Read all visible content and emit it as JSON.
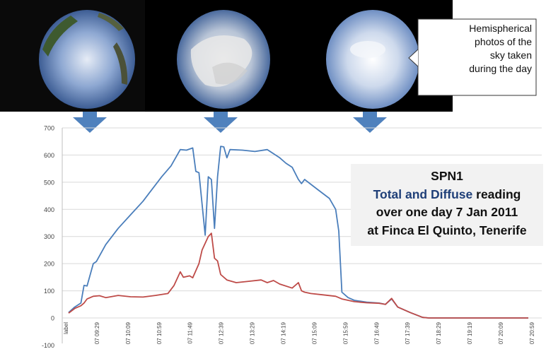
{
  "callout": {
    "lines": [
      "Hemispherical",
      "photos of the",
      "sky taken",
      "during the day"
    ]
  },
  "title_box": {
    "line1": "SPN1",
    "line2_highlight": "Total and Diffuse",
    "line2_rest": " reading",
    "line3": "over  one day 7 Jan 2011",
    "line4": "at Finca El Quinto, Tenerife"
  },
  "colors": {
    "total": "#4a7ebb",
    "diffuse": "#be4b48",
    "arrow": "#4f81bd",
    "grid": "#d9d9d9"
  },
  "chart_data": {
    "type": "line",
    "x_tick_labels": [
      "label",
      "07 09:29",
      "07 10:09",
      "07 10:59",
      "07 11:49",
      "07 12:39",
      "07 13:29",
      "07 14:19",
      "07 15:09",
      "07 15:59",
      "07 16:49",
      "07 17:39",
      "07 18:29",
      "07 19:19",
      "07 20:09",
      "07 20:59"
    ],
    "ylim": [
      -100,
      700
    ],
    "y_ticks": [
      -100,
      0,
      100,
      200,
      300,
      400,
      500,
      600,
      700
    ],
    "grid": true,
    "series": [
      {
        "name": "Total",
        "color": "#4a7ebb",
        "points": [
          [
            "label",
            20
          ],
          [
            "08:59",
            40
          ],
          [
            "09:09",
            55
          ],
          [
            "09:14",
            120
          ],
          [
            "09:19",
            118
          ],
          [
            "09:29",
            200
          ],
          [
            "09:34",
            208
          ],
          [
            "09:49",
            270
          ],
          [
            "10:09",
            330
          ],
          [
            "10:29",
            380
          ],
          [
            "10:49",
            430
          ],
          [
            "10:59",
            460
          ],
          [
            "11:19",
            520
          ],
          [
            "11:34",
            560
          ],
          [
            "11:49",
            620
          ],
          [
            "11:59",
            618
          ],
          [
            "12:09",
            626
          ],
          [
            "12:14",
            540
          ],
          [
            "12:19",
            535
          ],
          [
            "12:29",
            305
          ],
          [
            "12:34",
            520
          ],
          [
            "12:39",
            510
          ],
          [
            "12:44",
            330
          ],
          [
            "12:49",
            520
          ],
          [
            "12:54",
            632
          ],
          [
            "12:59",
            630
          ],
          [
            "13:04",
            590
          ],
          [
            "13:09",
            620
          ],
          [
            "13:29",
            618
          ],
          [
            "13:49",
            613
          ],
          [
            "14:09",
            620
          ],
          [
            "14:19",
            605
          ],
          [
            "14:29",
            590
          ],
          [
            "14:39",
            570
          ],
          [
            "14:49",
            555
          ],
          [
            "14:59",
            510
          ],
          [
            "15:04",
            495
          ],
          [
            "15:09",
            510
          ],
          [
            "15:29",
            475
          ],
          [
            "15:49",
            440
          ],
          [
            "15:59",
            400
          ],
          [
            "16:04",
            320
          ],
          [
            "16:09",
            95
          ],
          [
            "16:19",
            75
          ],
          [
            "16:29",
            65
          ],
          [
            "16:49",
            58
          ],
          [
            "17:09",
            55
          ],
          [
            "17:19",
            50
          ],
          [
            "17:29",
            70
          ],
          [
            "17:39",
            40
          ],
          [
            "17:59",
            20
          ],
          [
            "18:19",
            2
          ],
          [
            "18:29",
            0
          ],
          [
            "19:29",
            0
          ],
          [
            "20:29",
            0
          ],
          [
            "21:09",
            0
          ]
        ]
      },
      {
        "name": "Diffuse",
        "color": "#be4b48",
        "points": [
          [
            "label",
            18
          ],
          [
            "08:59",
            35
          ],
          [
            "09:09",
            45
          ],
          [
            "09:14",
            55
          ],
          [
            "09:19",
            70
          ],
          [
            "09:29",
            80
          ],
          [
            "09:39",
            82
          ],
          [
            "09:49",
            75
          ],
          [
            "10:09",
            83
          ],
          [
            "10:29",
            78
          ],
          [
            "10:49",
            77
          ],
          [
            "11:09",
            83
          ],
          [
            "11:29",
            90
          ],
          [
            "11:39",
            120
          ],
          [
            "11:49",
            170
          ],
          [
            "11:54",
            150
          ],
          [
            "12:04",
            155
          ],
          [
            "12:09",
            148
          ],
          [
            "12:19",
            200
          ],
          [
            "12:24",
            250
          ],
          [
            "12:34",
            300
          ],
          [
            "12:39",
            312
          ],
          [
            "12:44",
            220
          ],
          [
            "12:49",
            210
          ],
          [
            "12:54",
            160
          ],
          [
            "13:04",
            140
          ],
          [
            "13:19",
            130
          ],
          [
            "13:39",
            135
          ],
          [
            "13:59",
            140
          ],
          [
            "14:09",
            130
          ],
          [
            "14:19",
            138
          ],
          [
            "14:29",
            125
          ],
          [
            "14:49",
            110
          ],
          [
            "14:59",
            130
          ],
          [
            "15:04",
            100
          ],
          [
            "15:09",
            95
          ],
          [
            "15:19",
            90
          ],
          [
            "15:39",
            85
          ],
          [
            "15:59",
            80
          ],
          [
            "16:09",
            70
          ],
          [
            "16:29",
            60
          ],
          [
            "16:49",
            56
          ],
          [
            "17:09",
            54
          ],
          [
            "17:19",
            50
          ],
          [
            "17:29",
            72
          ],
          [
            "17:39",
            40
          ],
          [
            "17:59",
            20
          ],
          [
            "18:19",
            2
          ],
          [
            "18:29",
            0
          ],
          [
            "19:29",
            0
          ],
          [
            "20:29",
            0
          ],
          [
            "21:09",
            0
          ]
        ]
      }
    ]
  }
}
